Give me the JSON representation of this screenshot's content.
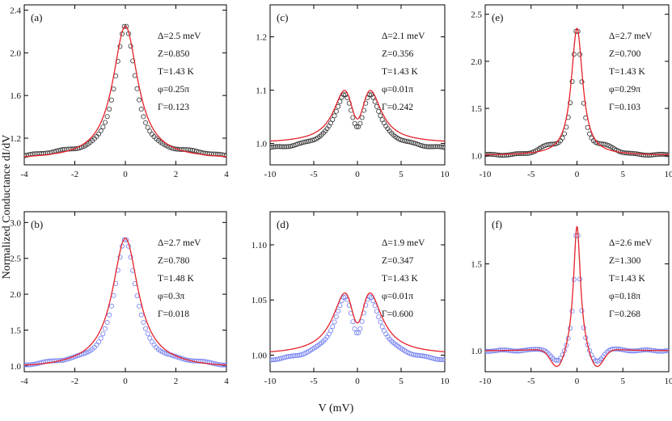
{
  "figure": {
    "ylabel": "Normalized Conductance dI/dV",
    "xlabel": "V (mV)"
  },
  "colors": {
    "fit": "#e4222a",
    "black_data": "#333333",
    "blue_data": "#6f7df0",
    "axis": "#000000"
  },
  "chart_data": [
    {
      "type": "scatter",
      "panel": "(a)",
      "marker_color": "black",
      "xlim": [
        -4,
        4
      ],
      "ylim": [
        0.95,
        2.45
      ],
      "xticks": [
        -4,
        -2,
        0,
        2,
        4
      ],
      "yticks": [
        1.2,
        1.6,
        2.0,
        2.4
      ],
      "xtick_labels": [
        "-4",
        "-2",
        "0",
        "2",
        "4"
      ],
      "ytick_labels": [
        "1.2",
        "1.6",
        "2.0",
        "2.4"
      ],
      "params": [
        "Δ=2.5 meV",
        "Z=0.850",
        "T=1.43 K",
        "φ=0.25π",
        "Γ=0.123"
      ],
      "shape": {
        "base": 1.0,
        "amp": 1.25,
        "width": 0.6,
        "sep": 0.0,
        "dip": 0,
        "dwid": 1,
        "ov": 0,
        "ow": 1,
        "shoulder": 0.04
      }
    },
    {
      "type": "scatter",
      "panel": "(b)",
      "marker_color": "blue",
      "xlim": [
        -4,
        4
      ],
      "ylim": [
        0.92,
        3.15
      ],
      "xticks": [
        -4,
        -2,
        0,
        2,
        4
      ],
      "yticks": [
        1.0,
        1.5,
        2.0,
        2.5,
        3.0
      ],
      "xtick_labels": [
        "-4",
        "-2",
        "0",
        "2",
        "4"
      ],
      "ytick_labels": [
        "1.0",
        "1.5",
        "2.0",
        "2.5",
        "3.0"
      ],
      "params": [
        "Δ=2.7 meV",
        "Z=0.780",
        "T=1.48 K",
        "φ=0.3π",
        "Γ=0.018"
      ],
      "shape": {
        "base": 1.0,
        "amp": 1.78,
        "width": 0.62,
        "sep": 0.0,
        "dip": 0,
        "dwid": 1,
        "ov": -0.03,
        "ow": 2.2,
        "shoulder": 0.04
      }
    },
    {
      "type": "scatter",
      "panel": "(c)",
      "marker_color": "black",
      "xlim": [
        -10,
        10
      ],
      "ylim": [
        0.96,
        1.26
      ],
      "xticks": [
        -10,
        -5,
        0,
        5,
        10
      ],
      "yticks": [
        1.0,
        1.1,
        1.2
      ],
      "xtick_labels": [
        "-10",
        "-5",
        "0",
        "5",
        "10"
      ],
      "ytick_labels": [
        "1.0",
        "1.1",
        "1.2"
      ],
      "params": [
        "Δ=2.1 meV",
        "Z=0.356",
        "T=1.43 K",
        "φ=0.01π",
        "Γ=0.242"
      ],
      "shape": {
        "base": 1.0,
        "amp": 0.17,
        "width": 1.6,
        "sep": 1.4,
        "dip": 0.05,
        "dwid": 0.7,
        "ov": 0,
        "ow": 1,
        "shoulder": 0.0
      }
    },
    {
      "type": "scatter",
      "panel": "(d)",
      "marker_color": "blue",
      "xlim": [
        -10,
        10
      ],
      "ylim": [
        0.985,
        1.13
      ],
      "xticks": [
        -10,
        -5,
        0,
        5,
        10
      ],
      "yticks": [
        1.0,
        1.05,
        1.1
      ],
      "xtick_labels": [
        "-10",
        "-5",
        "0",
        "5",
        "10"
      ],
      "ytick_labels": [
        "1.00",
        "1.05",
        "1.10"
      ],
      "params": [
        "Δ=1.9 meV",
        "Z=0.347",
        "T=1.43 K",
        "φ=0.01π",
        "Γ=0.600"
      ],
      "shape": {
        "base": 1.0,
        "amp": 0.093,
        "width": 1.8,
        "sep": 1.3,
        "dip": 0.032,
        "dwid": 0.7,
        "ov": 0,
        "ow": 1,
        "shoulder": 0.0
      }
    },
    {
      "type": "scatter",
      "panel": "(e)",
      "marker_color": "black",
      "xlim": [
        -10,
        10
      ],
      "ylim": [
        0.9,
        2.6
      ],
      "xticks": [
        -10,
        -5,
        0,
        5,
        10
      ],
      "yticks": [
        1.0,
        1.5,
        2.0,
        2.5
      ],
      "xtick_labels": [
        "-10",
        "-5",
        "0",
        "5",
        "10"
      ],
      "ytick_labels": [
        "1.0",
        "1.5",
        "2.0",
        "2.5"
      ],
      "params": [
        "Δ=2.7 meV",
        "Z=0.700",
        "T=1.43 K",
        "φ=0.29π",
        "Γ=0.103"
      ],
      "shape": {
        "base": 1.0,
        "amp": 1.35,
        "width": 0.75,
        "sep": 0.0,
        "dip": 0,
        "dwid": 1,
        "ov": 0,
        "ow": 1,
        "shoulder": 0.06
      }
    },
    {
      "type": "scatter",
      "panel": "(f)",
      "marker_color": "blue",
      "xlim": [
        -10,
        10
      ],
      "ylim": [
        0.88,
        1.8
      ],
      "xticks": [
        -10,
        -5,
        0,
        5,
        10
      ],
      "yticks": [
        1.0,
        1.5
      ],
      "xtick_labels": [
        "-10",
        "-5",
        "0",
        "5",
        "10"
      ],
      "ytick_labels": [
        "1.0",
        "1.5"
      ],
      "params": [
        "Δ=2.6 meV",
        "Z=1.300",
        "T=1.43 K",
        "φ=0.18π",
        "Γ=0.268"
      ],
      "shape": {
        "base": 1.0,
        "amp": 0.72,
        "width": 0.45,
        "sep": 0.0,
        "dip": 0,
        "dwid": 1,
        "ov": -0.12,
        "ow": 1.3,
        "shoulder": 0.04
      }
    }
  ]
}
